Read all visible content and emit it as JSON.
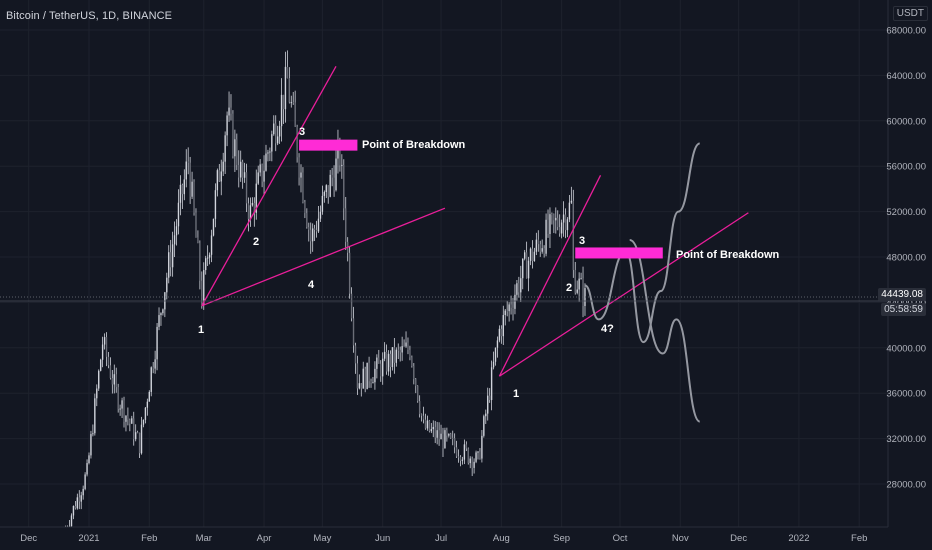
{
  "header": {
    "symbol_title": "Bitcoin / TetherUS, 1D, BINANCE",
    "currency_label": "USDT"
  },
  "price_axis": {
    "ticks": [
      "68000.00",
      "64000.00",
      "60000.00",
      "56000.00",
      "52000.00",
      "48000.00",
      "44000.00",
      "40000.00",
      "36000.00",
      "32000.00",
      "28000.00"
    ],
    "tick_values": [
      68000,
      64000,
      60000,
      56000,
      52000,
      48000,
      44000,
      40000,
      36000,
      32000,
      28000
    ],
    "last_price": "44439.08",
    "countdown": "05:58:59"
  },
  "time_axis": {
    "labels": [
      "Dec",
      "2021",
      "Feb",
      "Mar",
      "Apr",
      "May",
      "Jun",
      "Jul",
      "Aug",
      "Sep",
      "Oct",
      "Nov",
      "Dec",
      "2022",
      "Feb"
    ]
  },
  "annotations": {
    "wave_labels_left": [
      "1",
      "2",
      "3",
      "4"
    ],
    "wave_labels_right": [
      "1",
      "2",
      "3",
      "4?"
    ],
    "breakdown_label_left": "Point of Breakdown",
    "breakdown_label_right": "Point of Breakdown"
  },
  "colors": {
    "background": "#131722",
    "candles": "#d1d4dc",
    "trendlines": "#e91e9a",
    "breakdown_box": "#ff2bd6",
    "projection": "#9598a1",
    "axis_text": "#b2b5be"
  },
  "chart_data": {
    "type": "candlestick",
    "title": "Bitcoin / TetherUS, 1D, BINANCE",
    "ylabel": "USDT",
    "ylim": [
      24500,
      71000
    ],
    "x_range": [
      "2020-12-01",
      "2022-02-28"
    ],
    "grid": true,
    "price_path": [
      {
        "date": "2020-12-20",
        "close": 24000
      },
      {
        "date": "2020-12-31",
        "close": 29000
      },
      {
        "date": "2021-01-08",
        "close": 40500
      },
      {
        "date": "2021-01-15",
        "close": 36000
      },
      {
        "date": "2021-01-27",
        "close": 31500
      },
      {
        "date": "2021-02-08",
        "close": 44500
      },
      {
        "date": "2021-02-21",
        "close": 56500
      },
      {
        "date": "2021-02-28",
        "close": 44500
      },
      {
        "date": "2021-03-13",
        "close": 60500
      },
      {
        "date": "2021-03-25",
        "close": 51800
      },
      {
        "date": "2021-04-13",
        "close": 63500
      },
      {
        "date": "2021-04-25",
        "close": 49500
      },
      {
        "date": "2021-05-10",
        "close": 57000
      },
      {
        "date": "2021-05-19",
        "close": 37000
      },
      {
        "date": "2021-06-15",
        "close": 40000
      },
      {
        "date": "2021-06-22",
        "close": 33000
      },
      {
        "date": "2021-07-20",
        "close": 30000
      },
      {
        "date": "2021-07-31",
        "close": 41500
      },
      {
        "date": "2021-08-14",
        "close": 47500
      },
      {
        "date": "2021-08-22",
        "close": 49500
      },
      {
        "date": "2021-09-06",
        "close": 52500
      },
      {
        "date": "2021-09-07",
        "close": 46500
      },
      {
        "date": "2021-09-13",
        "close": 44400
      }
    ],
    "projection_a": [
      {
        "date": "2021-09-13",
        "value": 45500
      },
      {
        "date": "2021-09-20",
        "value": 42500
      },
      {
        "date": "2021-10-04",
        "value": 48500
      },
      {
        "date": "2021-10-13",
        "value": 40500
      },
      {
        "date": "2021-10-22",
        "value": 45000
      },
      {
        "date": "2021-10-31",
        "value": 52000
      },
      {
        "date": "2021-11-11",
        "value": 58000
      }
    ],
    "projection_b": [
      {
        "date": "2021-10-06",
        "value": 49500
      },
      {
        "date": "2021-10-23",
        "value": 39500
      },
      {
        "date": "2021-10-30",
        "value": 42500
      },
      {
        "date": "2021-11-11",
        "value": 33500
      }
    ],
    "trendlines": [
      {
        "from": {
          "date": "2021-02-28",
          "value": 43700
        },
        "to": {
          "date": "2021-05-08",
          "value": 64800
        }
      },
      {
        "from": {
          "date": "2021-02-28",
          "value": 43700
        },
        "to": {
          "date": "2021-07-03",
          "value": 52300
        }
      },
      {
        "from": {
          "date": "2021-07-31",
          "value": 37500
        },
        "to": {
          "date": "2021-09-21",
          "value": 55200
        }
      },
      {
        "from": {
          "date": "2021-07-31",
          "value": 37500
        },
        "to": {
          "date": "2021-12-06",
          "value": 51900
        }
      }
    ],
    "breakdown_zones": [
      {
        "from": "2021-04-19",
        "to": "2021-05-19",
        "value": 57900
      },
      {
        "from": "2021-09-08",
        "to": "2021-10-23",
        "value": 48400
      }
    ]
  }
}
